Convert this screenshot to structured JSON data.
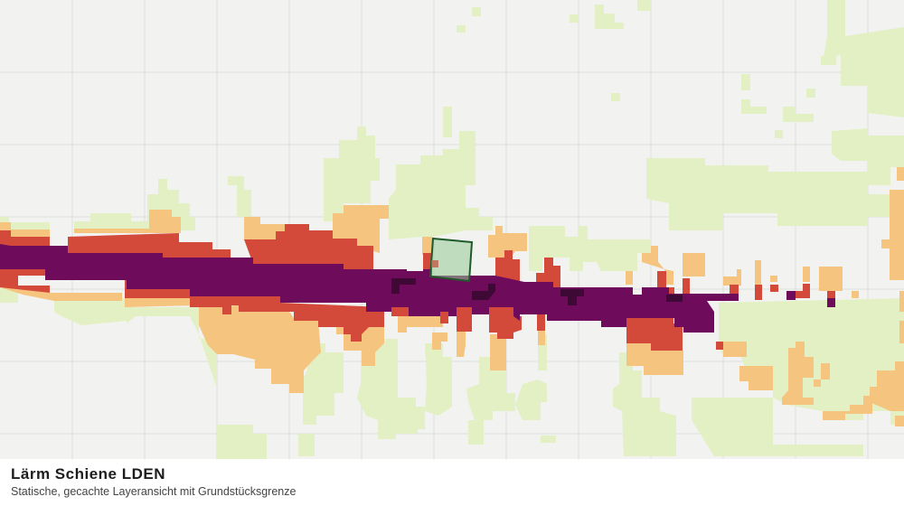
{
  "map": {
    "title": "Lärm Schiene LDEN",
    "subtitle": "Statische, gecachte Layeransicht mit Grundstücksgrenze"
  }
}
